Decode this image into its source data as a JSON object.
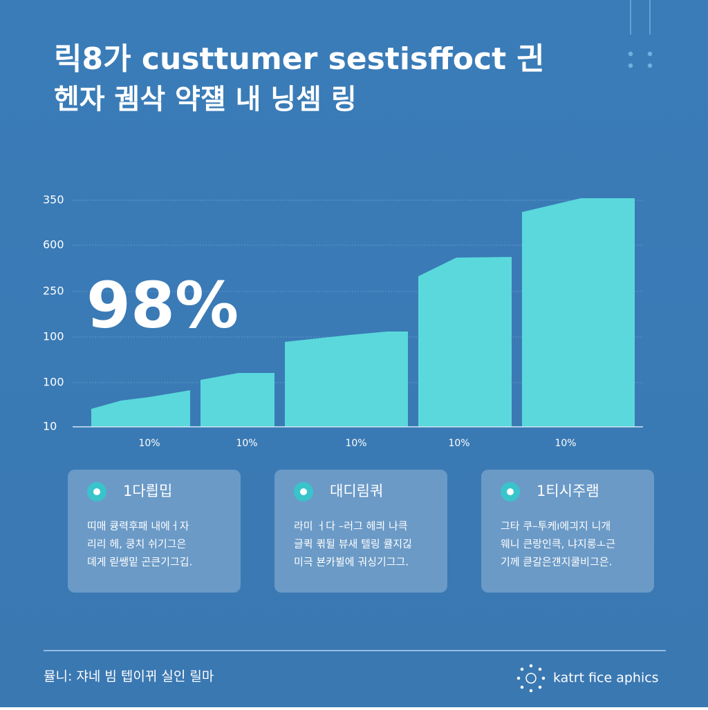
{
  "header": {
    "title_line_1": "릭8가 custtumer sestisffoct 긘",
    "title_line_2": "헨자 궴삭 약쟬 내 닝셈 링"
  },
  "graphic": {
    "axis_labels": [
      "350",
      "600",
      "250",
      "100",
      "100",
      "10"
    ],
    "bottom_labels": [
      "10%",
      "10%",
      "10%",
      "10%",
      "10%"
    ],
    "headline_figure": "98%"
  },
  "cards": [
    {
      "title": "1다릡밉",
      "lines": [
        "띠매 큥력후패 내에ㅓ자",
        "리리 헤, 쿵치 쉬기그은",
        "뎨게 릳쌩밑 곤큰기그깁."
      ]
    },
    {
      "title": "대디림쿼",
      "lines": [
        "라미 ㅓ다 –러그 헤킈 나큭",
        "글퀵 퀶뒬 뷰새 텔링 큘지긶",
        "미극 뵨카뷜에 궈싱기그그."
      ]
    },
    {
      "title": "1티시주램",
      "lines": [
        "그타 쿠–투케ı에긔지 니개",
        "웨니 큰랑인큭, 냐지룽ㅗ근",
        "기께 큳갈은걘지쿨비그은."
      ]
    }
  ],
  "footer": {
    "source": "뮬니: 쟈네 빔 텝이뀌 실인 릴마",
    "brand": "katrt fice aphics"
  }
}
